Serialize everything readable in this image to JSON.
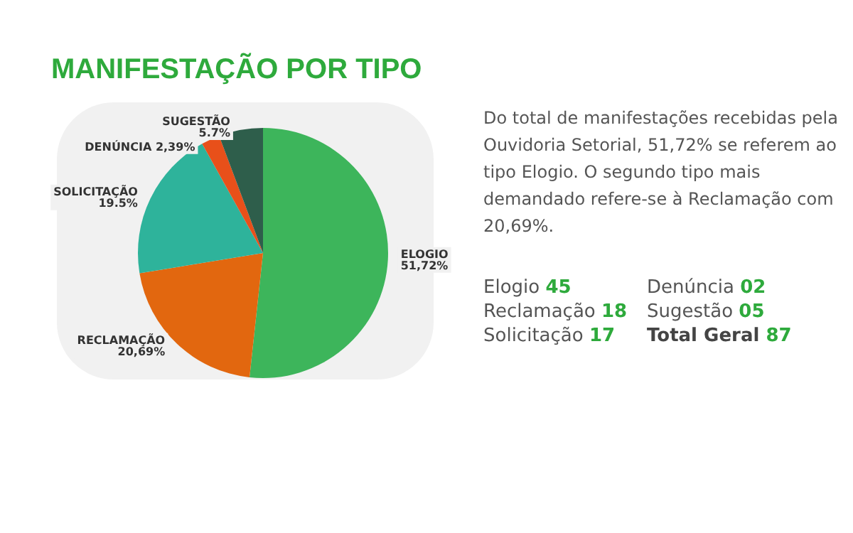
{
  "chart_data": [
    {
      "type": "pie",
      "title": "MANIFESTAÇÃO POR TIPO",
      "categories": [
        "ELOGIO",
        "RECLAMAÇÃO",
        "SOLICITAÇÃO",
        "DENÚNCIA",
        "SUGESTÃO"
      ],
      "values": [
        51.72,
        20.69,
        19.5,
        2.39,
        5.7
      ],
      "value_labels": [
        "51,72%",
        "20,69%",
        "19.5%",
        "2,39%",
        "5.7%"
      ],
      "colors": [
        "#3db55b",
        "#e2670f",
        "#2eb39b",
        "#e8501a",
        "#2e5e4b"
      ],
      "legend": false
    },
    {
      "type": "other",
      "annotations": [
        "Do total de manifestações recebidas pela Ouvidoria Setorial, 51,72% se referem ao tipo Elogio. O segundo tipo mais demandado refere-se à Reclamação com 20,69%."
      ],
      "categories": [
        "Elogio",
        "Denúncia",
        "Reclamação",
        "Sugestão",
        "Solicitação",
        "Total Geral"
      ],
      "value_labels": [
        "45",
        "02",
        "18",
        "05",
        "17",
        "87"
      ]
    }
  ]
}
